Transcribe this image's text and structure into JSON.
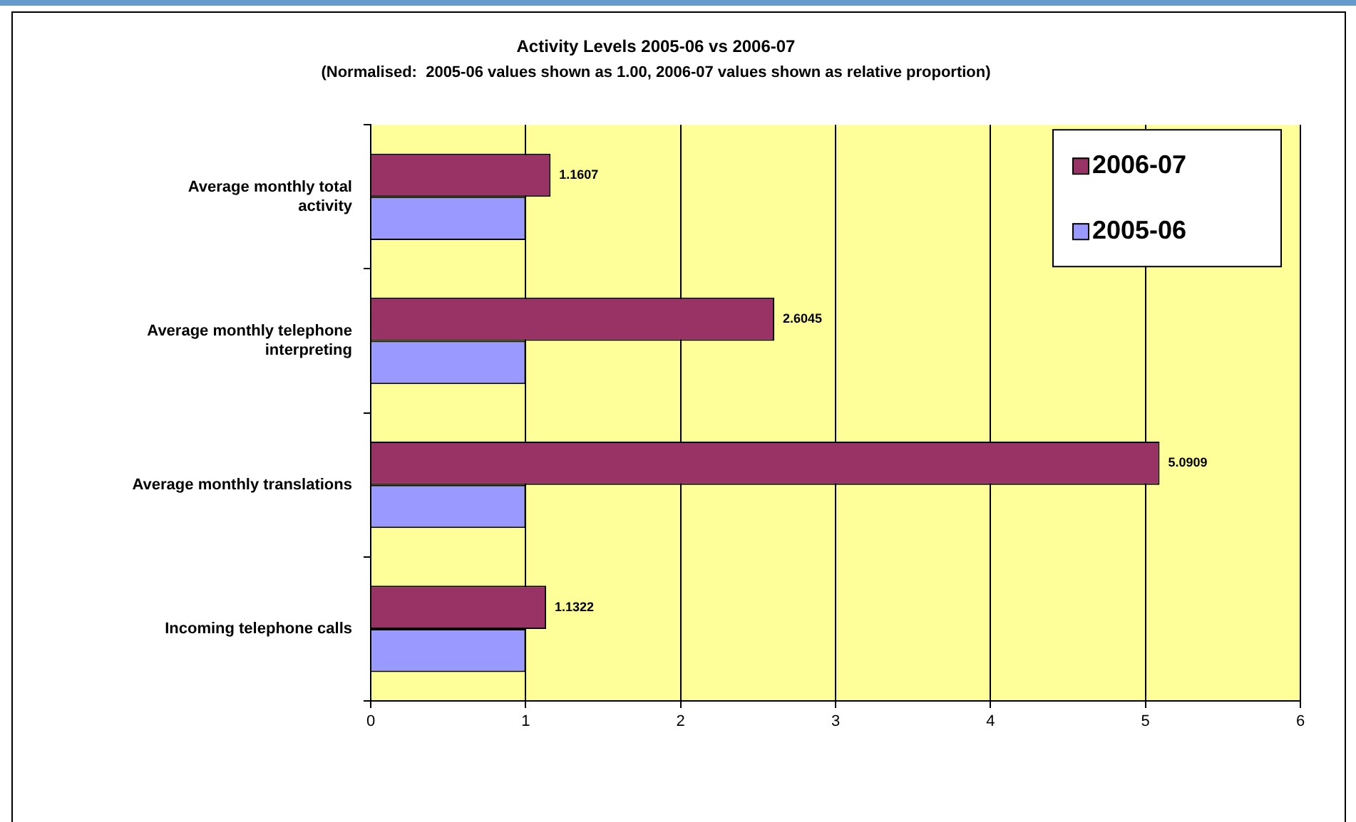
{
  "chart_data": {
    "type": "bar",
    "orientation": "horizontal",
    "title": "Activity Levels 2005-06 vs 2006-07",
    "subtitle": "(Normalised:  2005-06 values shown as 1.00, 2006-07 values shown as relative proportion)",
    "categories": [
      "Average monthly total activity",
      "Average monthly telephone interpreting",
      "Average monthly translations",
      "Incoming telephone calls"
    ],
    "series": [
      {
        "name": "2006-07",
        "color": "#993366",
        "values": [
          1.1607,
          2.6045,
          5.0909,
          1.1322
        ],
        "value_labels": [
          "1.1607",
          "2.6045",
          "5.0909",
          "1.1322"
        ]
      },
      {
        "name": "2005-06",
        "color": "#9999ff",
        "values": [
          1,
          1,
          1,
          1
        ]
      }
    ],
    "xlim": [
      0,
      6
    ],
    "xticks": [
      0,
      1,
      2,
      3,
      4,
      5,
      6
    ],
    "grid": "x",
    "legend": "top right"
  }
}
